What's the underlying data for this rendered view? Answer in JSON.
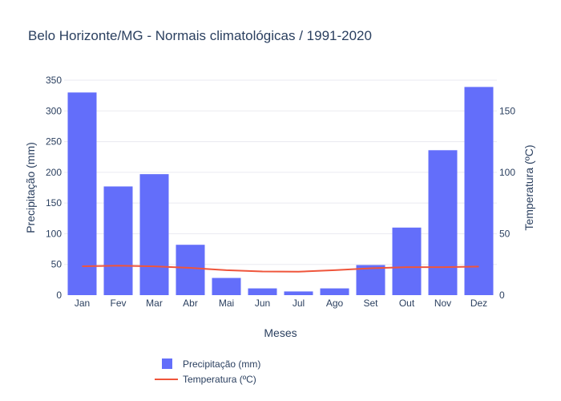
{
  "chart_data": {
    "type": "bar",
    "title": "Belo Horizonte/MG - Normais climatológicas / 1991-2020",
    "xlabel": "Meses",
    "ylabel": "Precipitação (mm)",
    "y2label": "Temperatura (ºC)",
    "categories": [
      "Jan",
      "Fev",
      "Mar",
      "Abr",
      "Mai",
      "Jun",
      "Jul",
      "Ago",
      "Set",
      "Out",
      "Nov",
      "Dez"
    ],
    "ylim": [
      0,
      350
    ],
    "y2lim": [
      0,
      175
    ],
    "yticks": [
      0,
      50,
      100,
      150,
      200,
      250,
      300,
      350
    ],
    "y2ticks": [
      0,
      50,
      100,
      150
    ],
    "legend_position": "bottom",
    "series": [
      {
        "name": "Precipitação (mm)",
        "type": "bar",
        "axis": "y",
        "color": "#636efa",
        "values": [
          330,
          177,
          197,
          82,
          28,
          11,
          6,
          11,
          49,
          110,
          236,
          339
        ]
      },
      {
        "name": "Temperatura (ºC)",
        "type": "line",
        "axis": "y2",
        "color": "#ef553b",
        "values": [
          23.5,
          24.0,
          23.4,
          22.2,
          20.3,
          19.3,
          19.1,
          20.3,
          21.9,
          22.8,
          22.8,
          23.3
        ]
      }
    ]
  }
}
